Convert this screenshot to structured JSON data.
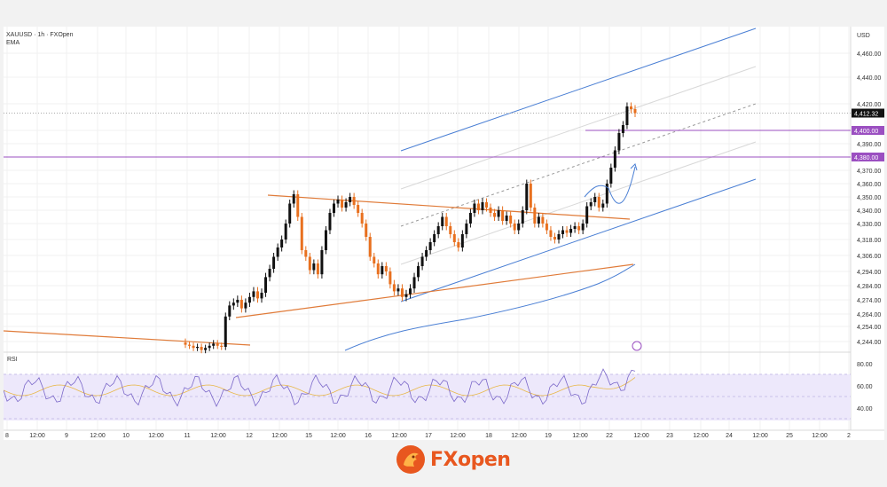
{
  "header": {
    "symbol_line": "XAUUSD · 1h · FXOpen",
    "indicator": "EMA"
  },
  "rsi_panel": {
    "label": "RSI",
    "ticks": [
      "80.00",
      "60.00",
      "40.00"
    ]
  },
  "brand": {
    "name": "FXopen",
    "accent": "#e8571f"
  },
  "colors": {
    "up": "#111111",
    "down": "#e8701f",
    "channel": "#4a7fd4",
    "level": "#9b4fc1",
    "trendline": "#e07b39",
    "ema": "#4a7fd4",
    "rsi": "#7b68c9"
  },
  "chart_data": {
    "type": "candlestick",
    "symbol": "XAUUSD",
    "timeframe": "1h",
    "currency": "USD",
    "y_ticks": [
      4460,
      4440,
      4420,
      4400,
      4390,
      4380,
      4370,
      4360,
      4350,
      4340,
      4330,
      4318,
      4306,
      4294,
      4284,
      4274,
      4264,
      4254,
      4244
    ],
    "y_tick_labels": [
      "4,460.00",
      "4,440.00",
      "4,420.00",
      "4,400.00",
      "4,390.00",
      "4,380.00",
      "4,370.00",
      "4,360.00",
      "4,350.00",
      "4,340.00",
      "4,330.00",
      "4,318.00",
      "4,306.00",
      "4,294.00",
      "4,284.00",
      "4,274.00",
      "4,264.00",
      "4,254.00",
      "4,244.00"
    ],
    "x_tick_labels": [
      "8",
      "12:00",
      "9",
      "12:00",
      "10",
      "12:00",
      "11",
      "12:00",
      "12",
      "12:00",
      "15",
      "12:00",
      "16",
      "12:00",
      "17",
      "12:00",
      "18",
      "12:00",
      "19",
      "12:00",
      "22",
      "12:00",
      "23",
      "12:00",
      "24",
      "12:00",
      "25",
      "12:00",
      "2"
    ],
    "last_price_label": "4,412.32",
    "level_labels": [
      "4,400.00",
      "4,380.00"
    ],
    "candles_close": [
      4241,
      4240,
      4238,
      4239,
      4236,
      4238,
      4240,
      4242,
      4240,
      4239,
      4262,
      4270,
      4272,
      4274,
      4268,
      4272,
      4276,
      4280,
      4275,
      4279,
      4290,
      4296,
      4305,
      4312,
      4318,
      4330,
      4345,
      4352,
      4335,
      4310,
      4305,
      4295,
      4300,
      4292,
      4310,
      4325,
      4338,
      4345,
      4348,
      4342,
      4346,
      4350,
      4344,
      4338,
      4330,
      4320,
      4305,
      4300,
      4292,
      4298,
      4294,
      4285,
      4280,
      4282,
      4276,
      4278,
      4282,
      4290,
      4298,
      4305,
      4310,
      4316,
      4322,
      4328,
      4335,
      4328,
      4322,
      4316,
      4312,
      4322,
      4330,
      4338,
      4345,
      4340,
      4346,
      4342,
      4338,
      4335,
      4340,
      4332,
      4336,
      4330,
      4325,
      4330,
      4340,
      4360,
      4342,
      4330,
      4335,
      4330,
      4325,
      4320,
      4318,
      4322,
      4325,
      4323,
      4326,
      4328,
      4325,
      4330,
      4343,
      4346,
      4350,
      4342,
      4345,
      4360,
      4372,
      4385,
      4398,
      4404,
      4418,
      4416,
      4413
    ],
    "levels": [
      4400,
      4380
    ]
  }
}
